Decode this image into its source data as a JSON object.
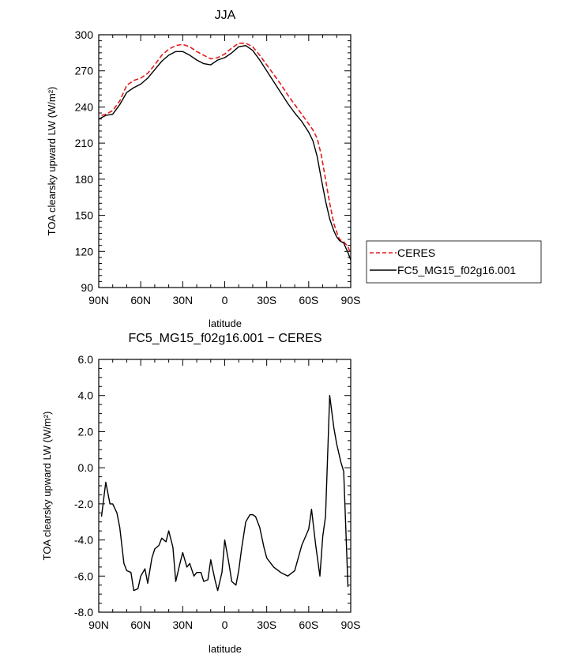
{
  "chart_data": [
    {
      "type": "line",
      "title": "JJA",
      "xlabel": "latitude",
      "ylabel": "TOA clearsky upward LW (W/m²)",
      "x_ticks": [
        "90N",
        "60N",
        "30N",
        "0",
        "30S",
        "60S",
        "90S"
      ],
      "y_ticks": [
        "90",
        "120",
        "150",
        "180",
        "210",
        "240",
        "270",
        "300"
      ],
      "xlim": [
        90,
        -90
      ],
      "ylim": [
        90,
        300
      ],
      "legend": "right",
      "series": [
        {
          "name": "CERES",
          "color": "#e31a1c",
          "style": "dashed",
          "x": [
            88,
            85,
            80,
            75,
            70,
            65,
            60,
            55,
            50,
            45,
            40,
            35,
            30,
            25,
            20,
            15,
            10,
            5,
            0,
            -5,
            -10,
            -15,
            -20,
            -25,
            -30,
            -35,
            -40,
            -45,
            -50,
            -55,
            -60,
            -63,
            -66,
            -69,
            -72,
            -75,
            -78,
            -80,
            -82,
            -85,
            -88,
            -90
          ],
          "y": [
            233,
            234,
            237,
            245,
            258,
            262,
            264,
            268,
            275,
            283,
            288,
            291,
            292,
            290,
            286,
            283,
            280,
            281,
            284,
            289,
            293,
            293,
            290,
            283,
            275,
            267,
            259,
            250,
            242,
            234,
            226,
            221,
            214,
            200,
            180,
            160,
            143,
            136,
            130,
            128,
            124,
            118
          ]
        },
        {
          "name": "FC5_MG15_f02g16.001",
          "color": "#000000",
          "style": "solid",
          "x": [
            90,
            85,
            80,
            75,
            70,
            65,
            60,
            55,
            50,
            45,
            40,
            35,
            30,
            25,
            20,
            15,
            10,
            5,
            0,
            -5,
            -10,
            -15,
            -20,
            -25,
            -30,
            -35,
            -40,
            -45,
            -50,
            -55,
            -60,
            -63,
            -66,
            -69,
            -72,
            -75,
            -78,
            -80,
            -82,
            -85,
            -88,
            -90
          ],
          "y": [
            230,
            233,
            234,
            242,
            252,
            256,
            259,
            264,
            271,
            278,
            283,
            286,
            286,
            283,
            279,
            276,
            275,
            279,
            281,
            285,
            290,
            291,
            287,
            279,
            270,
            261,
            252,
            243,
            235,
            228,
            219,
            212,
            199,
            180,
            162,
            147,
            137,
            132,
            129,
            127,
            119,
            113
          ]
        }
      ]
    },
    {
      "type": "line",
      "title": "FC5_MG15_f02g16.001 − CERES",
      "xlabel": "latitude",
      "ylabel": "TOA clearsky upward LW (W/m²)",
      "x_ticks": [
        "90N",
        "60N",
        "30N",
        "0",
        "30S",
        "60S",
        "90S"
      ],
      "y_ticks": [
        "6.0",
        "4.0",
        "2.0",
        "0.0",
        "-2.0",
        "-4.0",
        "-6.0",
        "-8.0"
      ],
      "xlim": [
        90,
        -90
      ],
      "ylim": [
        -8,
        6
      ],
      "series": [
        {
          "color": "#000000",
          "style": "solid",
          "x": [
            88,
            85,
            82,
            80,
            77,
            75,
            72,
            70,
            67,
            65,
            62,
            60,
            57,
            55,
            52,
            50,
            47,
            45,
            42,
            40,
            37,
            35,
            32,
            30,
            27,
            25,
            22,
            20,
            17,
            15,
            12,
            10,
            7,
            5,
            2,
            0,
            -3,
            -5,
            -8,
            -10,
            -12,
            -15,
            -18,
            -20,
            -22,
            -25,
            -28,
            -30,
            -35,
            -40,
            -45,
            -50,
            -55,
            -60,
            -62,
            -65,
            -68,
            -70,
            -72,
            -75,
            -78,
            -80,
            -83,
            -85,
            -88
          ],
          "y": [
            -2.7,
            -0.8,
            -2.0,
            -2.0,
            -2.5,
            -3.3,
            -5.3,
            -5.7,
            -5.8,
            -6.8,
            -6.7,
            -6.0,
            -5.6,
            -6.4,
            -5.0,
            -4.5,
            -4.3,
            -3.9,
            -4.1,
            -3.5,
            -4.4,
            -6.3,
            -5.3,
            -4.7,
            -5.5,
            -5.3,
            -6.0,
            -5.8,
            -5.8,
            -6.3,
            -6.2,
            -5.1,
            -6.2,
            -6.8,
            -5.8,
            -4.0,
            -5.3,
            -6.3,
            -6.5,
            -5.7,
            -4.5,
            -3.0,
            -2.6,
            -2.6,
            -2.7,
            -3.3,
            -4.4,
            -5.0,
            -5.5,
            -5.8,
            -6.0,
            -5.7,
            -4.3,
            -3.4,
            -2.3,
            -4.3,
            -6.0,
            -3.8,
            -2.7,
            4.0,
            2.2,
            1.3,
            0.3,
            -0.2,
            -6.6
          ]
        }
      ]
    }
  ]
}
